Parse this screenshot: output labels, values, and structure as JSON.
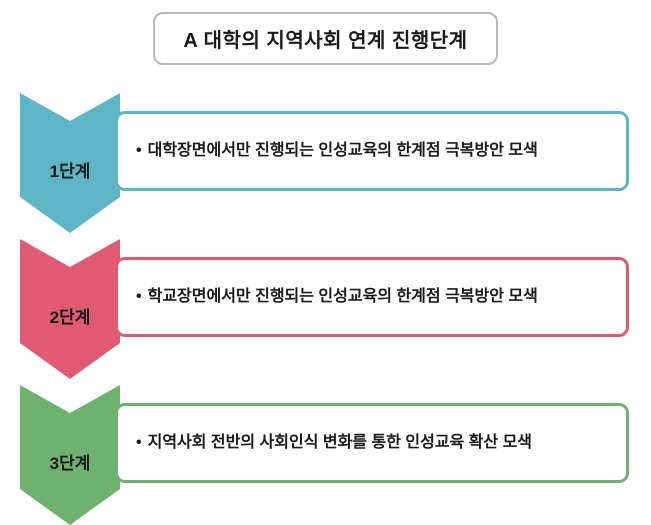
{
  "title": "A 대학의 지역사회 연계 진행단계",
  "title_border_color": "#b8b8b8",
  "stages": [
    {
      "label": "1단계",
      "text": "대학장면에서만 진행되는 인성교육의 한계점 극복방안 모색",
      "color": "#5eb5c4",
      "border_color": "#5eb5c4"
    },
    {
      "label": "2단계",
      "text": "학교장면에서만 진행되는 인성교육의 한계점 극복방안 모색",
      "color": "#e05a72",
      "border_color": "#e05a72"
    },
    {
      "label": "3단계",
      "text": "지역사회 전반의 사회인식 변화를 통한 인성교육 확산 모색",
      "color": "#6fb26f",
      "border_color": "#6fb26f"
    }
  ],
  "chevron": {
    "width": 100,
    "height": 140,
    "notch_depth": 28,
    "point_depth": 36
  }
}
